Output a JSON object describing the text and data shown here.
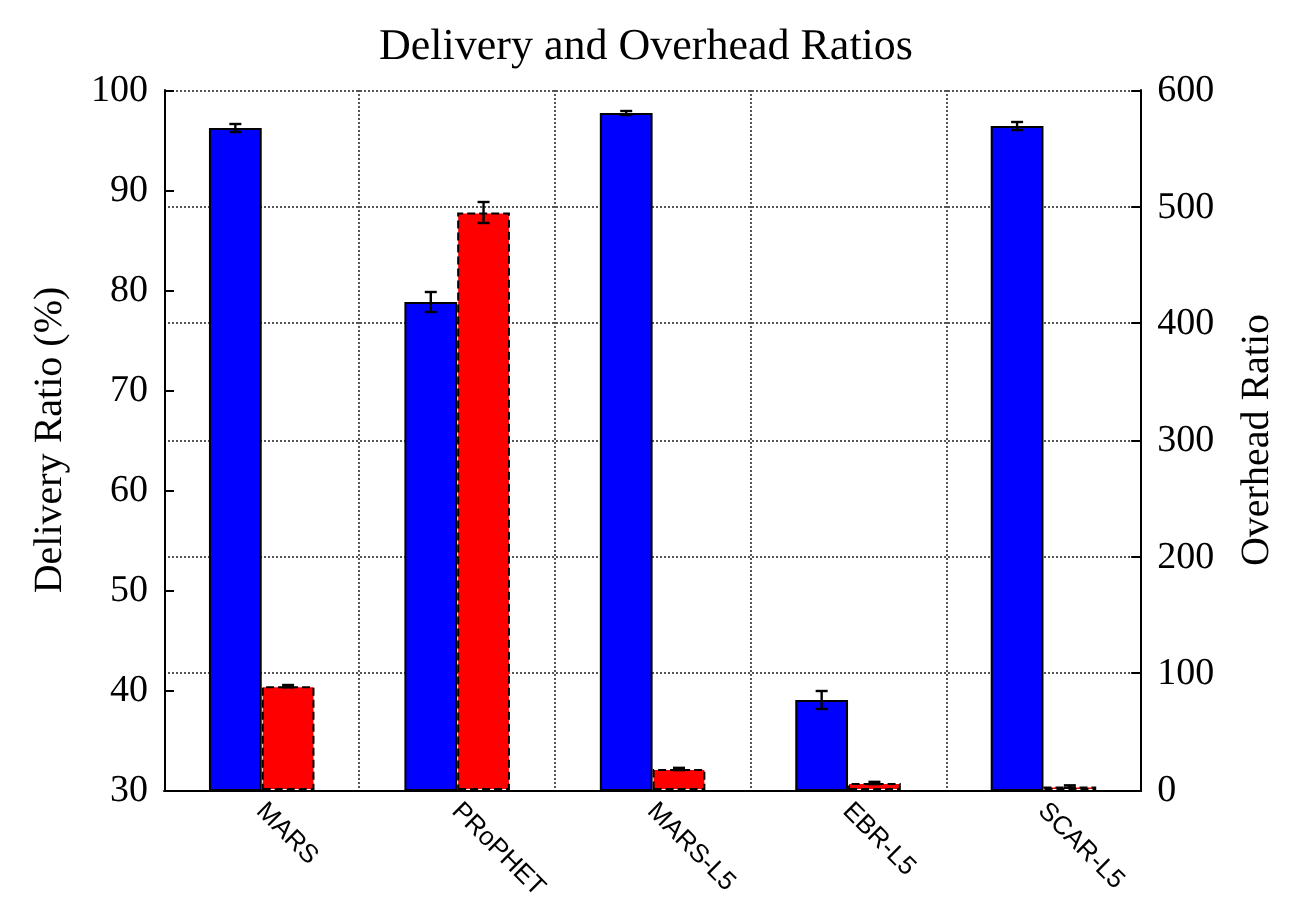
{
  "chart_data": {
    "type": "bar",
    "title": "Delivery and Overhead Ratios",
    "ylabel": "Delivery Ratio (%)",
    "y2label": "Overhead Ratio",
    "categories": [
      "MARS",
      "PRoPHET",
      "MARS-L5",
      "EBR-L5",
      "SCAR-L5"
    ],
    "series": [
      {
        "color": "#0000ff",
        "values": [
          96.2,
          78.8,
          97.7,
          39.0,
          96.4
        ],
        "errors": [
          0.4,
          1.0,
          0.2,
          0.9,
          0.4
        ]
      },
      {
        "color": "#ff0000",
        "axis": "y2",
        "values": [
          89,
          495,
          18,
          6,
          3
        ],
        "errors": [
          1,
          9,
          1,
          1,
          1
        ]
      }
    ],
    "ylim": [
      30,
      100
    ],
    "yticks": [
      30,
      40,
      50,
      60,
      70,
      80,
      90,
      100
    ],
    "y2lim": [
      0,
      600
    ],
    "y2ticks": [
      0,
      100,
      200,
      300,
      400,
      500,
      600
    ],
    "grid": true
  }
}
